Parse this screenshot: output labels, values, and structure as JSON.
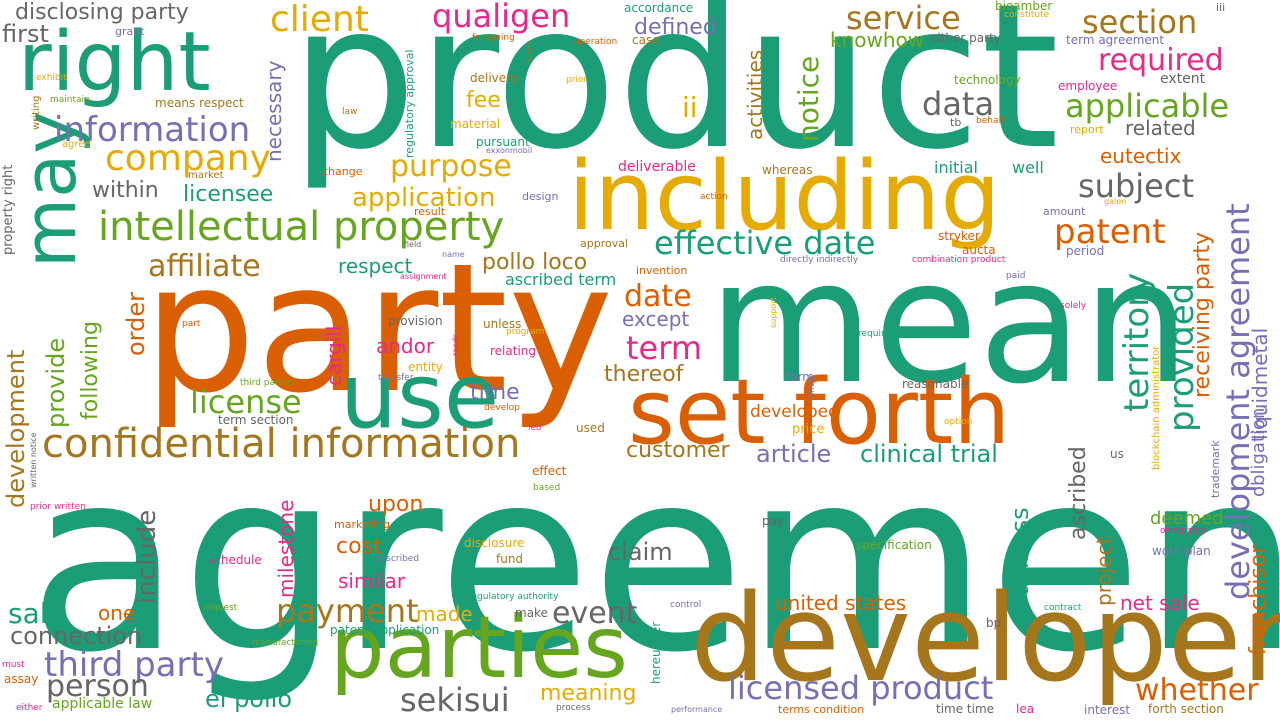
{
  "colors": {
    "teal": "#1b9e77",
    "orange": "#d95f02",
    "purple": "#7570b3",
    "pink": "#e7298a",
    "green": "#66a61e",
    "gold": "#e6ab02",
    "brown": "#a6761d",
    "gray": "#666666"
  },
  "words": [
    "agreement",
    "product",
    "party",
    "mean",
    "developer",
    "including",
    "set forth",
    "parties",
    "right",
    "use",
    "may",
    "confidential information",
    "intellectual property",
    "information",
    "company",
    "client",
    "qualigen",
    "service",
    "section",
    "required",
    "applicable",
    "effective date",
    "development agreement",
    "patent",
    "license",
    "licensed product",
    "data",
    "affiliate",
    "purpose",
    "application",
    "subject",
    "territory",
    "provided",
    "term",
    "date",
    "payment",
    "third party",
    "person",
    "sekisui",
    "whether",
    "net sale",
    "united states",
    "event",
    "sale",
    "connection",
    "el pollo",
    "meaning",
    "claim",
    "customer",
    "article",
    "clinical trial",
    "business",
    "project",
    "ascribed",
    "receiving party",
    "liquidmetal",
    "franchisor",
    "obligation",
    "eutectix",
    "related",
    "knowhow",
    "defined",
    "first",
    "disclosing party",
    "grant",
    "fee",
    "ii",
    "notice",
    "activities",
    "necessary",
    "within",
    "licensee",
    "development",
    "provide",
    "following",
    "order",
    "cargill",
    "andor",
    "pollo loco",
    "respect",
    "ascribed term",
    "except",
    "time",
    "thereof",
    "developed",
    "price",
    "include",
    "upon",
    "cost",
    "similar",
    "milestone",
    "one",
    "made",
    "deemed",
    "work plan",
    "specification",
    "initial",
    "well",
    "employee",
    "report",
    "extent",
    "bioamber",
    "constitute",
    "iii",
    "term agreement",
    "either party",
    "technology",
    "tb",
    "behalf",
    "stryker",
    "aucta",
    "amount",
    "period",
    "galen",
    "directly indirectly",
    "combination product",
    "paid",
    "solely",
    "requirement",
    "blockchain administrator",
    "trademark",
    "us",
    "option",
    "reasonable",
    "form",
    "driver",
    "support",
    "deliverable",
    "whereas",
    "action",
    "design",
    "result",
    "approval",
    "invention",
    "assignment",
    "name",
    "field",
    "change",
    "market",
    "agree",
    "writing",
    "property right",
    "exhibit",
    "maintain",
    "means respect",
    "law",
    "material",
    "pursuant",
    "exxonmobil",
    "delivery",
    "prior",
    "foregoing",
    "taxes",
    "operation",
    "case",
    "accordance",
    "regulatory approval",
    "unless",
    "provision",
    "program",
    "reeds",
    "entity",
    "relating",
    "part",
    "third parties",
    "transfer",
    "term section",
    "develop",
    "leo",
    "used",
    "effect",
    "based",
    "disclosure",
    "fund",
    "marketing",
    "schedule",
    "described",
    "written notice",
    "prior written",
    "regulatory authority",
    "make",
    "control",
    "contract",
    "hereunder",
    "bp",
    "pay",
    "ownership",
    "request",
    "manufacturing",
    "patent application",
    "must",
    "assay",
    "either",
    "applicable law",
    "process",
    "performance",
    "terms condition",
    "time time",
    "lea",
    "interest",
    "forth section"
  ]
}
